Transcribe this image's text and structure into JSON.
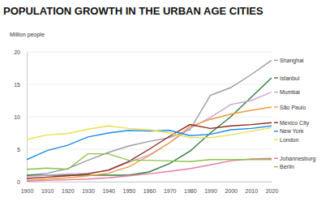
{
  "chart_data": {
    "type": "line",
    "title": "POPULATION GROWTH IN THE URBAN AGE CITIES",
    "ylabel": "Million people",
    "x": [
      1900,
      1910,
      1920,
      1930,
      1940,
      1950,
      1960,
      1970,
      1980,
      1990,
      2000,
      2010,
      2020
    ],
    "xlim": [
      1900,
      2020
    ],
    "xticks": [
      1900,
      1910,
      1920,
      1930,
      1940,
      1950,
      1960,
      1970,
      1980,
      1990,
      2000,
      2010,
      2020
    ],
    "ylim": [
      0,
      20
    ],
    "yticks": [
      0,
      5,
      10,
      15,
      20
    ],
    "grid": true,
    "legend": "right",
    "series": [
      {
        "name": "Shanghai",
        "color": "#9a9aa6",
        "values": [
          1,
          1.3,
          2,
          3.3,
          4.5,
          5.5,
          6.2,
          6.8,
          8,
          13.3,
          14.5,
          16.5,
          18.7
        ]
      },
      {
        "name": "Istanbul",
        "color": "#2e7d3a",
        "values": [
          1,
          1,
          1,
          1,
          1,
          1,
          1.5,
          2.8,
          4.7,
          7.5,
          10,
          13,
          16
        ]
      },
      {
        "name": "Mumbai",
        "color": "#c8a2d6",
        "values": [
          0.8,
          1,
          1.2,
          1.3,
          1.7,
          3,
          4.1,
          6,
          8.2,
          9.9,
          11.9,
          12.5,
          13.8
        ]
      },
      {
        "name": "São Paulo",
        "color": "#f39a3c",
        "values": [
          0.2,
          0.4,
          0.6,
          0.9,
          1.3,
          2.3,
          4,
          6,
          8.5,
          9.6,
          10.4,
          11,
          11.5
        ]
      },
      {
        "name": "Mexico City",
        "color": "#8b2a1a",
        "values": [
          0.5,
          0.7,
          0.9,
          1.2,
          1.8,
          3.1,
          5,
          7,
          8.8,
          8.2,
          8.6,
          8.8,
          9.1
        ]
      },
      {
        "name": "New York",
        "color": "#1e88e5",
        "values": [
          3.4,
          4.8,
          5.6,
          6.9,
          7.5,
          7.9,
          7.8,
          7.9,
          7.1,
          7.3,
          8,
          8.2,
          8.6
        ]
      },
      {
        "name": "London",
        "color": "#e6e04a",
        "values": [
          6.5,
          7.2,
          7.4,
          8.1,
          8.6,
          8.2,
          8,
          7.5,
          6.8,
          6.8,
          7.2,
          7.8,
          8.3
        ]
      },
      {
        "name": "Johannesburg",
        "color": "#e57ba3",
        "values": [
          0.1,
          0.2,
          0.3,
          0.4,
          0.6,
          0.9,
          1.2,
          1.6,
          2,
          2.6,
          3.2,
          3.5,
          3.6
        ]
      },
      {
        "name": "Berlin",
        "color": "#8bc34a",
        "values": [
          1.9,
          2.1,
          1.9,
          4.3,
          4.3,
          3.3,
          3.3,
          3.2,
          3.1,
          3.4,
          3.4,
          3.4,
          3.4
        ]
      }
    ]
  }
}
